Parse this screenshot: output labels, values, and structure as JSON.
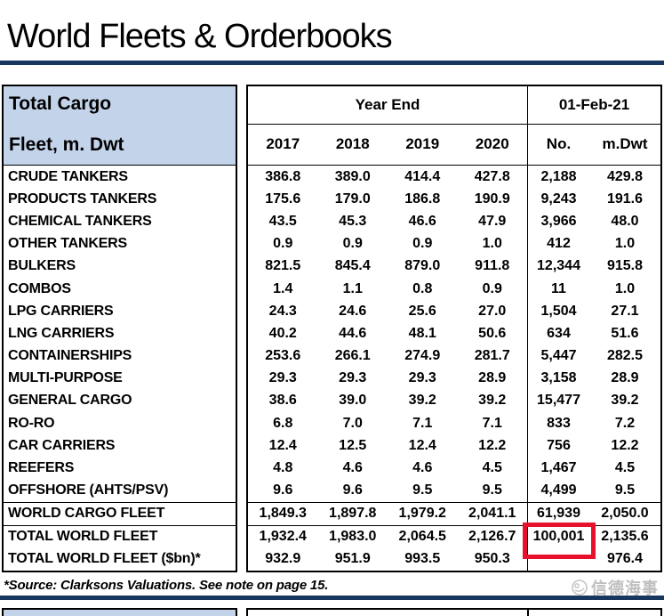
{
  "title": "World Fleets & Orderbooks",
  "table": {
    "left_header": {
      "line1": "Total Cargo",
      "line2": "Fleet, m. Dwt"
    },
    "column_groups": [
      {
        "label": "Year End"
      },
      {
        "label": "01-Feb-21"
      }
    ],
    "columns": [
      "2017",
      "2018",
      "2019",
      "2020",
      "No.",
      "m.Dwt"
    ],
    "rows": [
      {
        "label": "CRUDE TANKERS",
        "values": [
          "386.8",
          "389.0",
          "414.4",
          "427.8",
          "2,188",
          "429.8"
        ]
      },
      {
        "label": "PRODUCTS TANKERS",
        "values": [
          "175.6",
          "179.0",
          "186.8",
          "190.9",
          "9,243",
          "191.6"
        ]
      },
      {
        "label": "CHEMICAL TANKERS",
        "values": [
          "43.5",
          "45.3",
          "46.6",
          "47.9",
          "3,966",
          "48.0"
        ]
      },
      {
        "label": "OTHER TANKERS",
        "values": [
          "0.9",
          "0.9",
          "0.9",
          "1.0",
          "412",
          "1.0"
        ]
      },
      {
        "label": "BULKERS",
        "values": [
          "821.5",
          "845.4",
          "879.0",
          "911.8",
          "12,344",
          "915.8"
        ]
      },
      {
        "label": "COMBOS",
        "values": [
          "1.4",
          "1.1",
          "0.8",
          "0.9",
          "11",
          "1.0"
        ]
      },
      {
        "label": "LPG CARRIERS",
        "values": [
          "24.3",
          "24.6",
          "25.6",
          "27.0",
          "1,504",
          "27.1"
        ]
      },
      {
        "label": "LNG CARRIERS",
        "values": [
          "40.2",
          "44.6",
          "48.1",
          "50.6",
          "634",
          "51.6"
        ]
      },
      {
        "label": "CONTAINERSHIPS",
        "values": [
          "253.6",
          "266.1",
          "274.9",
          "281.7",
          "5,447",
          "282.5"
        ]
      },
      {
        "label": "MULTI-PURPOSE",
        "values": [
          "29.3",
          "29.3",
          "29.3",
          "28.9",
          "3,158",
          "28.9"
        ]
      },
      {
        "label": "GENERAL CARGO",
        "values": [
          "38.6",
          "39.0",
          "39.2",
          "39.2",
          "15,477",
          "39.2"
        ]
      },
      {
        "label": "RO-RO",
        "values": [
          "6.8",
          "7.0",
          "7.1",
          "7.1",
          "833",
          "7.2"
        ]
      },
      {
        "label": "CAR CARRIERS",
        "values": [
          "12.4",
          "12.5",
          "12.4",
          "12.2",
          "756",
          "12.2"
        ]
      },
      {
        "label": "REEFERS",
        "values": [
          "4.8",
          "4.6",
          "4.6",
          "4.5",
          "1,467",
          "4.5"
        ]
      },
      {
        "label": "OFFSHORE (AHTS/PSV)",
        "values": [
          "9.6",
          "9.6",
          "9.5",
          "9.5",
          "4,499",
          "9.5"
        ]
      },
      {
        "label": "WORLD CARGO FLEET",
        "values": [
          "1,849.3",
          "1,897.8",
          "1,979.2",
          "2,041.1",
          "61,939",
          "2,050.0"
        ],
        "summary": true,
        "divider_above": true
      },
      {
        "label": "TOTAL WORLD FLEET",
        "values": [
          "1,932.4",
          "1,983.0",
          "2,064.5",
          "2,126.7",
          "100,001",
          "2,135.6"
        ],
        "summary": true,
        "divider_above": true,
        "highlight_value_index": 4
      },
      {
        "label": "TOTAL WORLD FLEET ($bn)*",
        "values": [
          "932.9",
          "951.9",
          "993.5",
          "950.3",
          "",
          "976.4"
        ],
        "summary": true
      }
    ],
    "highlight": {
      "value": "100,001",
      "row": "TOTAL WORLD FLEET",
      "column": "No.",
      "box_color": "#E8112D"
    }
  },
  "footnote": "*Source: Clarksons Valuations. See note on page 15.",
  "watermark": {
    "text": "信德海事"
  },
  "colors": {
    "accent_navy": "#17375E",
    "header_blue": "#C3D3EA",
    "highlight_red": "#E8112D",
    "watermark_gray": "#BFBFBF"
  }
}
